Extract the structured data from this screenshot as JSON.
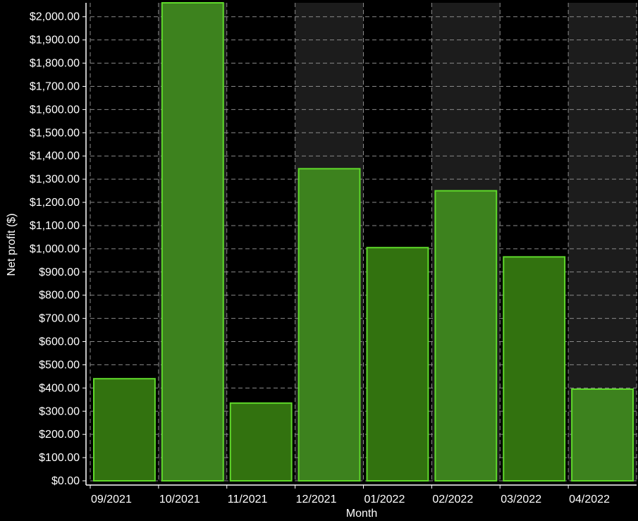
{
  "chart_data": {
    "type": "bar",
    "title": "",
    "xlabel": "Month",
    "ylabel": "Net profit ($)",
    "categories": [
      "09/2021",
      "10/2021",
      "11/2021",
      "12/2021",
      "01/2022",
      "02/2022",
      "03/2022",
      "04/2022"
    ],
    "values": [
      440,
      2060,
      335,
      1345,
      1005,
      1250,
      965,
      395
    ],
    "ylim": [
      0,
      2060
    ],
    "yticks": [
      0,
      100,
      200,
      300,
      400,
      500,
      600,
      700,
      800,
      900,
      1000,
      1100,
      1200,
      1300,
      1400,
      1500,
      1600,
      1700,
      1800,
      1900,
      2000
    ],
    "ytick_labels": [
      "$0.00",
      "$100.00",
      "$200.00",
      "$300.00",
      "$400.00",
      "$500.00",
      "$600.00",
      "$700.00",
      "$800.00",
      "$900.00",
      "$1,000.00",
      "$1,100.00",
      "$1,200.00",
      "$1,300.00",
      "$1,400.00",
      "$1,500.00",
      "$1,600.00",
      "$1,700.00",
      "$1,800.00",
      "$1,900.00",
      "$2,000.00"
    ],
    "grid": true,
    "legend": "none",
    "colors": {
      "background": "#000000",
      "band_alternate": "#1c1c1c",
      "bar_fill_dark": "#32720f",
      "bar_fill_light": "#3d821e",
      "bar_edge": "#5fd92a",
      "grid": "#8a8a8a",
      "axis": "#ffffff"
    }
  }
}
